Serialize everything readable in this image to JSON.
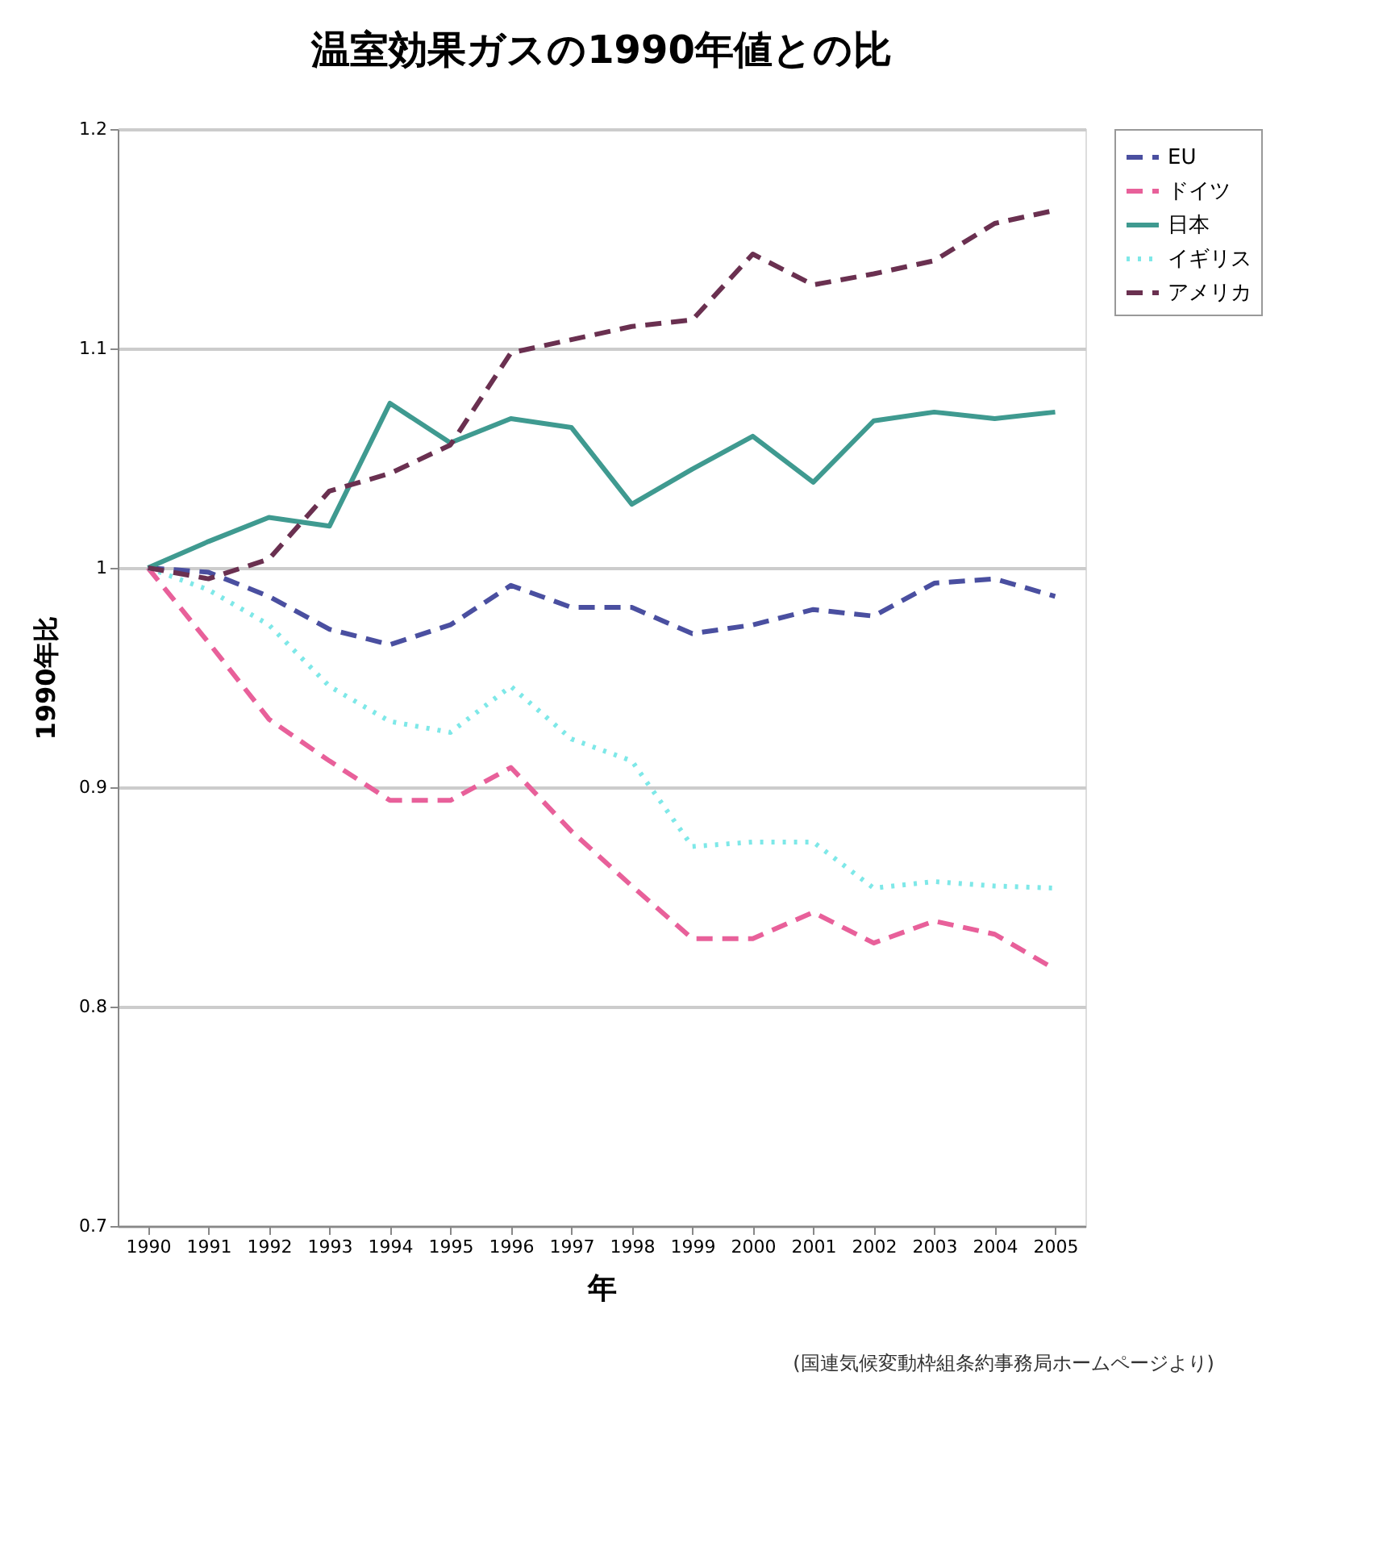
{
  "chart_data": {
    "type": "line",
    "title": "温室効果ガスの1990年値との比",
    "xlabel": "年",
    "ylabel": "1990年比",
    "categories": [
      "1990",
      "1991",
      "1992",
      "1993",
      "1994",
      "1995",
      "1996",
      "1997",
      "1998",
      "1999",
      "2000",
      "2001",
      "2002",
      "2003",
      "2004",
      "2005"
    ],
    "series": [
      {
        "name": "EU",
        "color": "#4a4fa0",
        "line_style": "dashed",
        "values": [
          1.0,
          0.998,
          0.987,
          0.972,
          0.965,
          0.974,
          0.992,
          0.982,
          0.982,
          0.97,
          0.974,
          0.981,
          0.978,
          0.993,
          0.995,
          0.987
        ]
      },
      {
        "name": "ドイツ",
        "color": "#e8609a",
        "line_style": "dashed",
        "values": [
          1.0,
          0.966,
          0.931,
          0.912,
          0.894,
          0.894,
          0.909,
          0.88,
          0.855,
          0.831,
          0.831,
          0.843,
          0.829,
          0.839,
          0.833,
          0.817
        ]
      },
      {
        "name": "日本",
        "color": "#3f9a90",
        "line_style": "solid",
        "values": [
          1.0,
          1.012,
          1.023,
          1.019,
          1.075,
          1.057,
          1.068,
          1.064,
          1.029,
          1.045,
          1.06,
          1.039,
          1.067,
          1.071,
          1.068,
          1.071
        ]
      },
      {
        "name": "イギリス",
        "color": "#7ee8e8",
        "line_style": "dotted",
        "values": [
          1.0,
          0.99,
          0.974,
          0.946,
          0.93,
          0.925,
          0.946,
          0.922,
          0.912,
          0.873,
          0.875,
          0.875,
          0.854,
          0.857,
          0.855,
          0.854
        ]
      },
      {
        "name": "アメリカ",
        "color": "#6a3050",
        "line_style": "dashed",
        "values": [
          1.0,
          0.995,
          1.004,
          1.035,
          1.043,
          1.056,
          1.098,
          1.104,
          1.11,
          1.113,
          1.143,
          1.129,
          1.134,
          1.14,
          1.157,
          1.163
        ]
      }
    ],
    "ylim": [
      0.7,
      1.2
    ],
    "yticks": [
      0.7,
      0.8,
      0.9,
      1,
      1.1,
      1.2
    ],
    "grid": "y",
    "legend": "right",
    "marker": "none",
    "annotations": [
      "(国連気候変動枠組条約事務局ホームページより)"
    ]
  }
}
